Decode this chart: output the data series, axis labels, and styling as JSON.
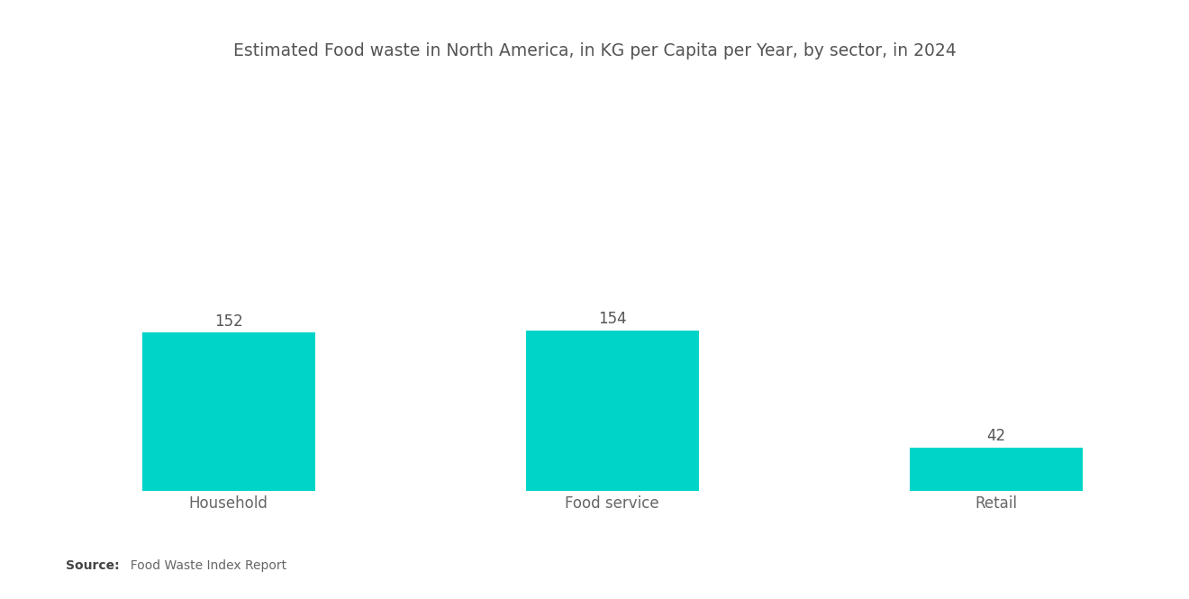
{
  "title": "Estimated Food waste in North America, in KG per Capita per Year, by sector, in 2024",
  "categories": [
    "Household",
    "Food service",
    "Retail"
  ],
  "values": [
    152,
    154,
    42
  ],
  "bar_color": "#00D4C8",
  "background_color": "#ffffff",
  "title_fontsize": 13.5,
  "label_fontsize": 12,
  "value_fontsize": 12,
  "source_bold": "Source:",
  "source_normal": "  Food Waste Index Report",
  "ylim": [
    0,
    310
  ],
  "bar_width": 0.45
}
